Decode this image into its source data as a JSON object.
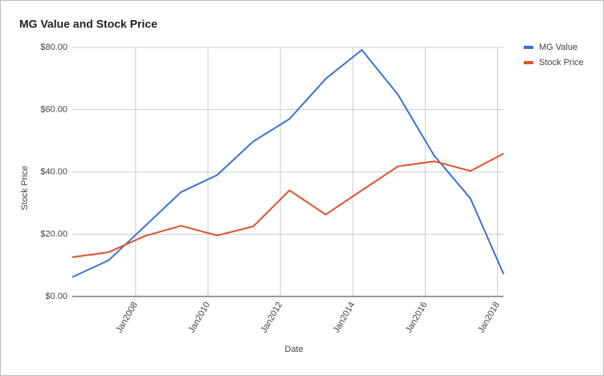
{
  "chart_data": {
    "type": "line",
    "title": "MG Value and Stock Price",
    "x_label": "Date",
    "y_label": "Stock Price",
    "x": [
      "2006-04",
      "2007-04",
      "2008-04",
      "2009-04",
      "2010-04",
      "2011-04",
      "2012-04",
      "2013-04",
      "2014-04",
      "2015-04",
      "2016-04",
      "2017-04",
      "2018-03"
    ],
    "series": [
      {
        "name": "MG Value",
        "color": "#3c6fd6",
        "values": [
          6.2,
          11.6,
          22.5,
          33.5,
          39.0,
          49.8,
          57.0,
          69.9,
          79.2,
          64.8,
          45.2,
          31.5,
          7.2
        ]
      },
      {
        "name": "Stock Price",
        "color": "#e0522f",
        "values": [
          12.6,
          14.2,
          19.4,
          22.7,
          19.6,
          22.5,
          34.1,
          26.3,
          34.1,
          41.8,
          43.4,
          40.3,
          45.9
        ]
      }
    ],
    "xlim": [
      "2006-04",
      "2018-03"
    ],
    "xticks": [
      {
        "value": "2008-01",
        "label": "Jan2008"
      },
      {
        "value": "2010-01",
        "label": "Jan2010"
      },
      {
        "value": "2012-01",
        "label": "Jan2012"
      },
      {
        "value": "2014-01",
        "label": "Jan2014"
      },
      {
        "value": "2016-01",
        "label": "Jan2016"
      },
      {
        "value": "2018-01",
        "label": "Jan2018"
      }
    ],
    "ylim": [
      0,
      80
    ],
    "yticks": [
      {
        "value": 0,
        "label": "$0.00"
      },
      {
        "value": 20,
        "label": "$20.00"
      },
      {
        "value": 40,
        "label": "$40.00"
      },
      {
        "value": 60,
        "label": "$60.00"
      },
      {
        "value": 80,
        "label": "$80.00"
      }
    ],
    "grid": true,
    "legend": "right"
  }
}
